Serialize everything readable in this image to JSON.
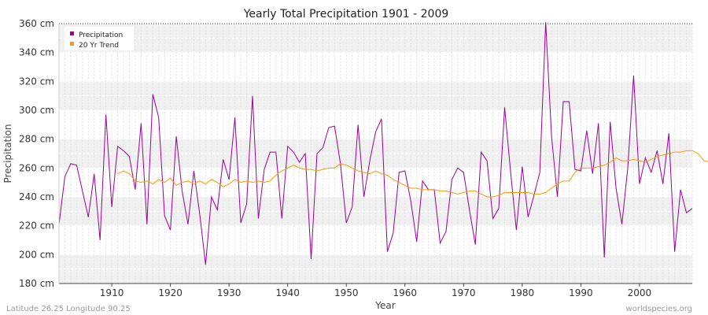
{
  "chart_data": {
    "type": "line",
    "title": "Yearly Total Precipitation 1901 - 2009",
    "xlabel": "Year",
    "ylabel": "Precipitation",
    "xlim": [
      1901,
      2009
    ],
    "ylim": [
      180,
      360
    ],
    "x_ticks": [
      1910,
      1920,
      1930,
      1940,
      1950,
      1960,
      1970,
      1980,
      1990,
      2000
    ],
    "y_ticks": [
      180,
      200,
      220,
      240,
      260,
      280,
      300,
      320,
      340,
      360
    ],
    "y_unit": "cm",
    "grid": true,
    "legend_position": "top-left",
    "series": [
      {
        "name": "Precipitation",
        "color": "#990099",
        "x_start": 1901,
        "values": [
          221,
          254,
          263,
          262,
          244,
          226,
          256,
          210,
          297,
          233,
          275,
          272,
          268,
          245,
          291,
          221,
          311,
          295,
          227,
          217,
          282,
          244,
          221,
          258,
          228,
          193,
          240,
          231,
          266,
          252,
          295,
          222,
          235,
          310,
          225,
          259,
          271,
          271,
          225,
          275,
          271,
          264,
          270,
          197,
          270,
          274,
          288,
          289,
          263,
          222,
          233,
          290,
          240,
          265,
          285,
          294,
          202,
          215,
          257,
          258,
          237,
          209,
          251,
          245,
          245,
          208,
          216,
          252,
          260,
          257,
          231,
          207,
          271,
          265,
          225,
          232,
          302,
          258,
          217,
          261,
          226,
          241,
          257,
          361,
          282,
          240,
          306,
          306,
          259,
          258,
          286,
          256,
          291,
          198,
          292,
          246,
          221,
          260,
          324,
          249,
          267,
          257,
          272,
          249,
          284,
          202,
          245,
          229,
          232
        ]
      },
      {
        "name": "20 Yr Trend",
        "color": "#ff9900",
        "x_start": 1911,
        "values": [
          256,
          258,
          256,
          251,
          250,
          251,
          249,
          252,
          250,
          253,
          248,
          250,
          251,
          249,
          251,
          249,
          252,
          250,
          247,
          249,
          252,
          250,
          251,
          250,
          251,
          250,
          251,
          255,
          258,
          260,
          262,
          260,
          259,
          259,
          258,
          259,
          260,
          260,
          263,
          262,
          260,
          258,
          257,
          256,
          258,
          256,
          255,
          252,
          250,
          248,
          246,
          246,
          245,
          245,
          245,
          244,
          244,
          243,
          242,
          243,
          244,
          244,
          242,
          240,
          240,
          241,
          243,
          243,
          243,
          243,
          243,
          242,
          242,
          243,
          246,
          249,
          251,
          251,
          257,
          260,
          260,
          260,
          261,
          262,
          264,
          267,
          265,
          265,
          266,
          265,
          264,
          266,
          268,
          269,
          270,
          271,
          271,
          272,
          272,
          270,
          265,
          264,
          265,
          261,
          258
        ]
      }
    ]
  },
  "footer": {
    "location": "Latitude 26.25 Longitude 90.25",
    "source": "worldspecies.org"
  }
}
